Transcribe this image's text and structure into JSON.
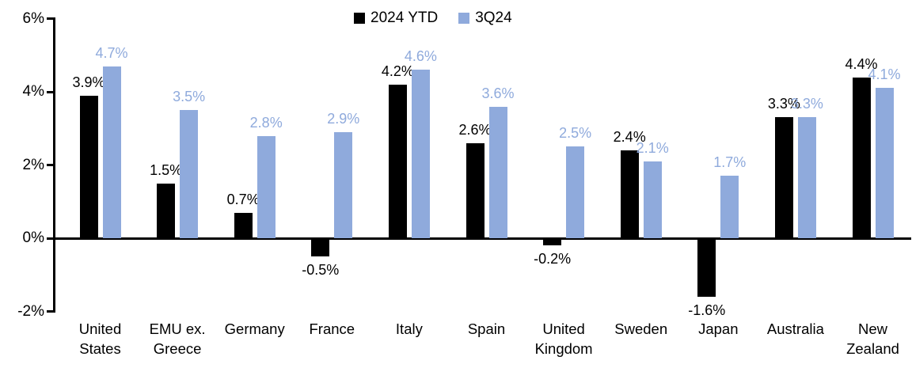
{
  "chart_data": {
    "type": "bar",
    "title": "",
    "categories": [
      "United\nStates",
      "EMU ex.\nGreece",
      "Germany",
      "France",
      "Italy",
      "Spain",
      "United\nKingdom",
      "Sweden",
      "Japan",
      "Australia",
      "New\nZealand"
    ],
    "series": [
      {
        "name": "2024 YTD",
        "color": "#000000",
        "label_color": "#000000",
        "values": [
          3.9,
          1.5,
          0.7,
          -0.5,
          4.2,
          2.6,
          -0.2,
          2.4,
          -1.6,
          3.3,
          4.4
        ]
      },
      {
        "name": "3Q24",
        "color": "#8FAADC",
        "label_color": "#8FAADC",
        "values": [
          4.7,
          3.5,
          2.8,
          2.9,
          4.6,
          3.6,
          2.5,
          2.1,
          1.7,
          3.3,
          4.1
        ]
      }
    ],
    "value_suffix": "%",
    "y_axis": {
      "tick_labels": [
        "6%",
        "4%",
        "2%",
        "0%",
        "-2%"
      ],
      "tick_values": [
        6,
        4,
        2,
        0,
        -2
      ],
      "min": -2,
      "max": 6
    },
    "legend_position": "top-center",
    "grid": false,
    "background_color": "#FFFFFF"
  }
}
